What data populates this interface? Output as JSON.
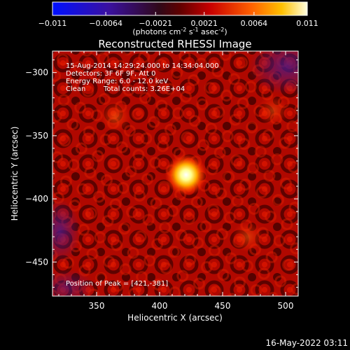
{
  "chart_data": {
    "type": "heatmap",
    "title": "Reconstructed RHESSI Image",
    "xlabel": "Heliocentric X (arcsec)",
    "ylabel": "Heliocentric Y (arcsec)",
    "xlim": [
      315,
      510
    ],
    "ylim": [
      -477,
      -283
    ],
    "xticks": [
      350,
      400,
      450,
      500
    ],
    "yticks": [
      -300,
      -350,
      -400,
      -450
    ],
    "colorbar": {
      "ticks": [
        "-0.011",
        "-0.0064",
        "-0.0021",
        "0.0021",
        "0.0064",
        "0.011"
      ],
      "range": [
        -0.011,
        0.011
      ],
      "units_prefix": "(photons cm",
      "units_exp1": "-2",
      "units_mid": " s",
      "units_exp2": "-1",
      "units_mid2": " asec",
      "units_exp3": "-2",
      "units_suffix": ")"
    },
    "annotations": {
      "time_range": "15-Aug-2014 14:29:24.000 to 14:34:04.000",
      "detectors": "Detectors: 3F 6F 9F, Att 0",
      "energy": "Energy Range: 6.0 - 12.0 keV",
      "method": "Clean",
      "total_counts": "Total counts: 3.26E+04",
      "peak": "Position of Peak = [421,-381]"
    },
    "peak": {
      "x": 421,
      "y": -381
    },
    "secondary_sources": [
      {
        "x": 365,
        "y": -335,
        "level": 0.55
      },
      {
        "x": 470,
        "y": -430,
        "level": 0.5
      },
      {
        "x": 490,
        "y": -330,
        "level": 0.45
      }
    ]
  },
  "footer": {
    "date": "16-May-2022 03:11"
  }
}
